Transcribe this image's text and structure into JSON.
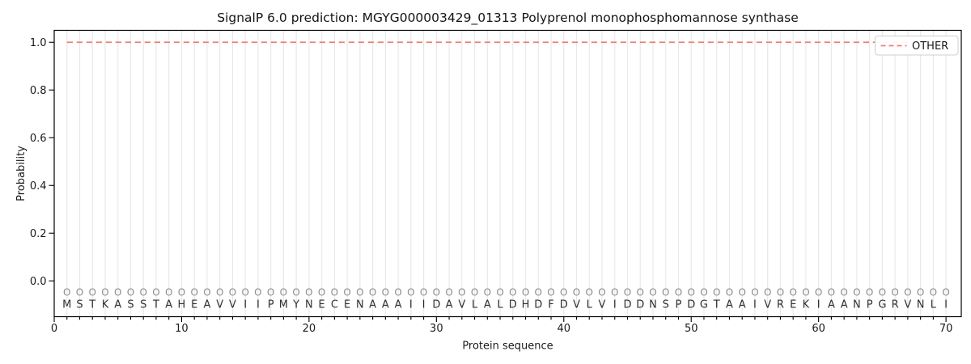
{
  "chart_data": {
    "type": "line",
    "title": "SignalP 6.0 prediction: MGYG000003429_01313 Polyprenol monophosphomannose synthase",
    "xlabel": "Protein sequence",
    "ylabel": "Probability",
    "xlim": [
      0,
      71.2
    ],
    "ylim": [
      -0.15,
      1.05
    ],
    "xticks": [
      0,
      10,
      20,
      30,
      40,
      50,
      60,
      70
    ],
    "xtick_labels": [
      "0",
      "10",
      "20",
      "30",
      "40",
      "50",
      "60",
      "70"
    ],
    "yticks": [
      0.0,
      0.2,
      0.4,
      0.6,
      0.8,
      1.0
    ],
    "ytick_labels": [
      "0.0",
      "0.2",
      "0.4",
      "0.6",
      "0.8",
      "1.0"
    ],
    "grid": "vertical-minor-per-residue",
    "n_positions": 70,
    "sequence": "MSTKASSTAHEAVVIIPMYNECENAAAIIDAVLALDHDFDVLVIDDNSPDGTAAIVREKIAANPGRVNLI",
    "marker_row": "OOOOOOOOOOOOOOOOOOOOOOOOOOOOOOOOOOOOOOOOOOOOOOOOOOOOOOOOOOOOOOOOOOOOOO",
    "legend": {
      "position": "upper right",
      "entries": [
        {
          "label": "OTHER",
          "color": "#ed7d7d",
          "dashed": true
        }
      ]
    },
    "series": [
      {
        "name": "OTHER",
        "color": "#ed7d7d",
        "style": "dashed",
        "x": [
          1,
          2,
          3,
          4,
          5,
          6,
          7,
          8,
          9,
          10,
          11,
          12,
          13,
          14,
          15,
          16,
          17,
          18,
          19,
          20,
          21,
          22,
          23,
          24,
          25,
          26,
          27,
          28,
          29,
          30,
          31,
          32,
          33,
          34,
          35,
          36,
          37,
          38,
          39,
          40,
          41,
          42,
          43,
          44,
          45,
          46,
          47,
          48,
          49,
          50,
          51,
          52,
          53,
          54,
          55,
          56,
          57,
          58,
          59,
          60,
          61,
          62,
          63,
          64,
          65,
          66,
          67,
          68,
          69,
          70
        ],
        "values": [
          1.0,
          1.0,
          1.0,
          1.0,
          1.0,
          1.0,
          1.0,
          1.0,
          1.0,
          1.0,
          1.0,
          1.0,
          1.0,
          1.0,
          1.0,
          1.0,
          1.0,
          1.0,
          1.0,
          1.0,
          1.0,
          1.0,
          1.0,
          1.0,
          1.0,
          1.0,
          1.0,
          1.0,
          1.0,
          1.0,
          1.0,
          1.0,
          1.0,
          1.0,
          1.0,
          1.0,
          1.0,
          1.0,
          1.0,
          1.0,
          1.0,
          1.0,
          1.0,
          1.0,
          1.0,
          1.0,
          1.0,
          1.0,
          1.0,
          1.0,
          1.0,
          1.0,
          1.0,
          1.0,
          1.0,
          1.0,
          1.0,
          1.0,
          1.0,
          1.0,
          1.0,
          1.0,
          1.0,
          1.0,
          1.0,
          1.0,
          1.0,
          1.0,
          1.0,
          1.0
        ]
      }
    ]
  }
}
